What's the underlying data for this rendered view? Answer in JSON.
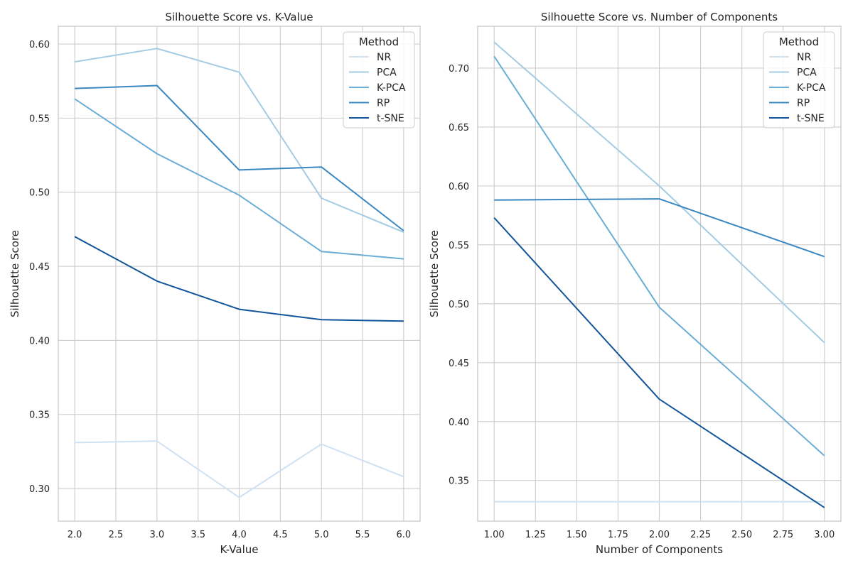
{
  "colors": {
    "NR": "#cfe1f2",
    "PCA": "#a3cbe3",
    "K-PCA": "#6aadd5",
    "RP": "#3a87c1",
    "t-SNE": "#12559a",
    "grid": "#cccccc",
    "spine": "#cccccc"
  },
  "chart_data": [
    {
      "type": "line",
      "title": "Silhouette Score vs. K-Value",
      "xlabel": "K-Value",
      "ylabel": "Silhouette Score",
      "xlim": [
        1.8,
        6.2
      ],
      "ylim": [
        0.278,
        0.612
      ],
      "xticks": [
        2.0,
        2.5,
        3.0,
        3.5,
        4.0,
        4.5,
        5.0,
        5.5,
        6.0
      ],
      "xtick_labels": [
        "2.0",
        "2.5",
        "3.0",
        "3.5",
        "4.0",
        "4.5",
        "5.0",
        "5.5",
        "6.0"
      ],
      "yticks": [
        0.3,
        0.35,
        0.4,
        0.45,
        0.5,
        0.55,
        0.6
      ],
      "ytick_labels": [
        "0.30",
        "0.35",
        "0.40",
        "0.45",
        "0.50",
        "0.55",
        "0.60"
      ],
      "x": [
        2,
        3,
        4,
        5,
        6
      ],
      "grid": true,
      "legend": {
        "title": "Method",
        "placement": "top-right"
      },
      "series": [
        {
          "name": "NR",
          "values": [
            0.331,
            0.332,
            0.294,
            0.33,
            0.308
          ]
        },
        {
          "name": "PCA",
          "values": [
            0.588,
            0.597,
            0.581,
            0.496,
            0.473
          ]
        },
        {
          "name": "K-PCA",
          "values": [
            0.563,
            0.526,
            0.498,
            0.46,
            0.455
          ]
        },
        {
          "name": "RP",
          "values": [
            0.57,
            0.572,
            0.515,
            0.517,
            0.474
          ]
        },
        {
          "name": "t-SNE",
          "values": [
            0.47,
            0.44,
            0.421,
            0.414,
            0.413
          ]
        }
      ]
    },
    {
      "type": "line",
      "title": "Silhouette Score vs. Number of Components",
      "xlabel": "Number of Components",
      "ylabel": "Silhouette Score",
      "xlim": [
        0.9,
        3.1
      ],
      "ylim": [
        0.3155,
        0.7355
      ],
      "xticks": [
        1.0,
        1.25,
        1.5,
        1.75,
        2.0,
        2.25,
        2.5,
        2.75,
        3.0
      ],
      "xtick_labels": [
        "1.00",
        "1.25",
        "1.50",
        "1.75",
        "2.00",
        "2.25",
        "2.50",
        "2.75",
        "3.00"
      ],
      "yticks": [
        0.35,
        0.4,
        0.45,
        0.5,
        0.55,
        0.6,
        0.65,
        0.7
      ],
      "ytick_labels": [
        "0.35",
        "0.40",
        "0.45",
        "0.50",
        "0.55",
        "0.60",
        "0.65",
        "0.70"
      ],
      "x": [
        1,
        2,
        3
      ],
      "grid": true,
      "legend": {
        "title": "Method",
        "placement": "top-right"
      },
      "series": [
        {
          "name": "NR",
          "values": [
            0.332,
            0.332,
            0.332
          ]
        },
        {
          "name": "PCA",
          "values": [
            0.722,
            0.6,
            0.467
          ]
        },
        {
          "name": "K-PCA",
          "values": [
            0.71,
            0.497,
            0.371
          ]
        },
        {
          "name": "RP",
          "values": [
            0.588,
            0.589,
            0.54
          ]
        },
        {
          "name": "t-SNE",
          "values": [
            0.573,
            0.419,
            0.327
          ]
        }
      ]
    }
  ]
}
